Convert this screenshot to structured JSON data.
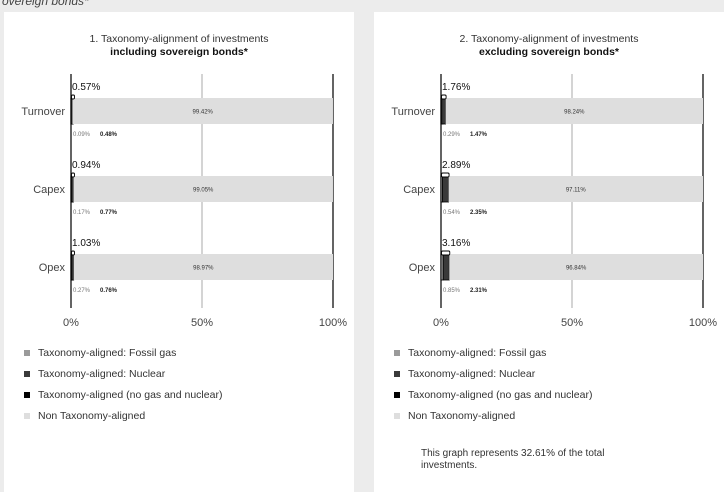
{
  "page": {
    "top_cut_text": "overeign bonds*"
  },
  "colors": {
    "fossil_gas": "#9a9a9a",
    "nuclear": "#3a3a3a",
    "no_gas_nuclear": "#000000",
    "non_aligned": "#dedede"
  },
  "legend": [
    {
      "label": "Taxonomy-aligned: Fossil gas",
      "color_key": "fossil_gas"
    },
    {
      "label": "Taxonomy-aligned: Nuclear",
      "color_key": "nuclear"
    },
    {
      "label": "Taxonomy-aligned (no gas and nuclear)",
      "color_key": "no_gas_nuclear"
    },
    {
      "label": "Non Taxonomy-aligned",
      "color_key": "non_aligned"
    }
  ],
  "panels": [
    {
      "title_line1": "1. Taxonomy-alignment of investments",
      "title_line2": "including sovereign bonds*",
      "note": ""
    },
    {
      "title_line1": "2. Taxonomy-alignment of investments",
      "title_line2": "excluding sovereign bonds*",
      "note": "This graph represents 32.61% of the total investments."
    }
  ],
  "chart_data": [
    {
      "type": "bar",
      "orientation": "horizontal",
      "stacked": true,
      "title": "1. Taxonomy-alignment of investments including sovereign bonds*",
      "categories": [
        "Turnover",
        "Capex",
        "Opex"
      ],
      "xlim": [
        0,
        100
      ],
      "xticks": [
        "0%",
        "50%",
        "100%"
      ],
      "grid": true,
      "series": [
        {
          "name": "Taxonomy-aligned: Fossil gas",
          "values": [
            0.09,
            0.17,
            0.27
          ],
          "labels": [
            "0.09%",
            "0.17%",
            "0.27%"
          ]
        },
        {
          "name": "Taxonomy-aligned: Nuclear",
          "values": [
            0.48,
            0.77,
            0.76
          ],
          "labels": [
            "0.48%",
            "0.77%",
            "0.76%"
          ]
        },
        {
          "name": "Taxonomy-aligned (no gas and nuclear)",
          "values": [
            0,
            0,
            0
          ],
          "labels": [
            "",
            "",
            ""
          ]
        },
        {
          "name": "Non Taxonomy-aligned",
          "values": [
            99.42,
            99.05,
            98.97
          ],
          "labels": [
            "99.42%",
            "99.05%",
            "98.97%"
          ]
        }
      ],
      "total_aligned_labels": [
        "0.57%",
        "0.94%",
        "1.03%"
      ]
    },
    {
      "type": "bar",
      "orientation": "horizontal",
      "stacked": true,
      "title": "2. Taxonomy-alignment of investments excluding sovereign bonds*",
      "categories": [
        "Turnover",
        "Capex",
        "Opex"
      ],
      "xlim": [
        0,
        100
      ],
      "xticks": [
        "0%",
        "50%",
        "100%"
      ],
      "grid": true,
      "series": [
        {
          "name": "Taxonomy-aligned: Fossil gas",
          "values": [
            0.29,
            0.54,
            0.85
          ],
          "labels": [
            "0.29%",
            "0.54%",
            "0.85%"
          ]
        },
        {
          "name": "Taxonomy-aligned: Nuclear",
          "values": [
            1.47,
            2.35,
            2.31
          ],
          "labels": [
            "1.47%",
            "2.35%",
            "2.31%"
          ]
        },
        {
          "name": "Taxonomy-aligned (no gas and nuclear)",
          "values": [
            0,
            0,
            0
          ],
          "labels": [
            "",
            "",
            ""
          ]
        },
        {
          "name": "Non Taxonomy-aligned",
          "values": [
            98.24,
            97.11,
            96.84
          ],
          "labels": [
            "98.24%",
            "97.11%",
            "96.84%"
          ]
        }
      ],
      "total_aligned_labels": [
        "1.76%",
        "2.89%",
        "3.16%"
      ]
    }
  ]
}
